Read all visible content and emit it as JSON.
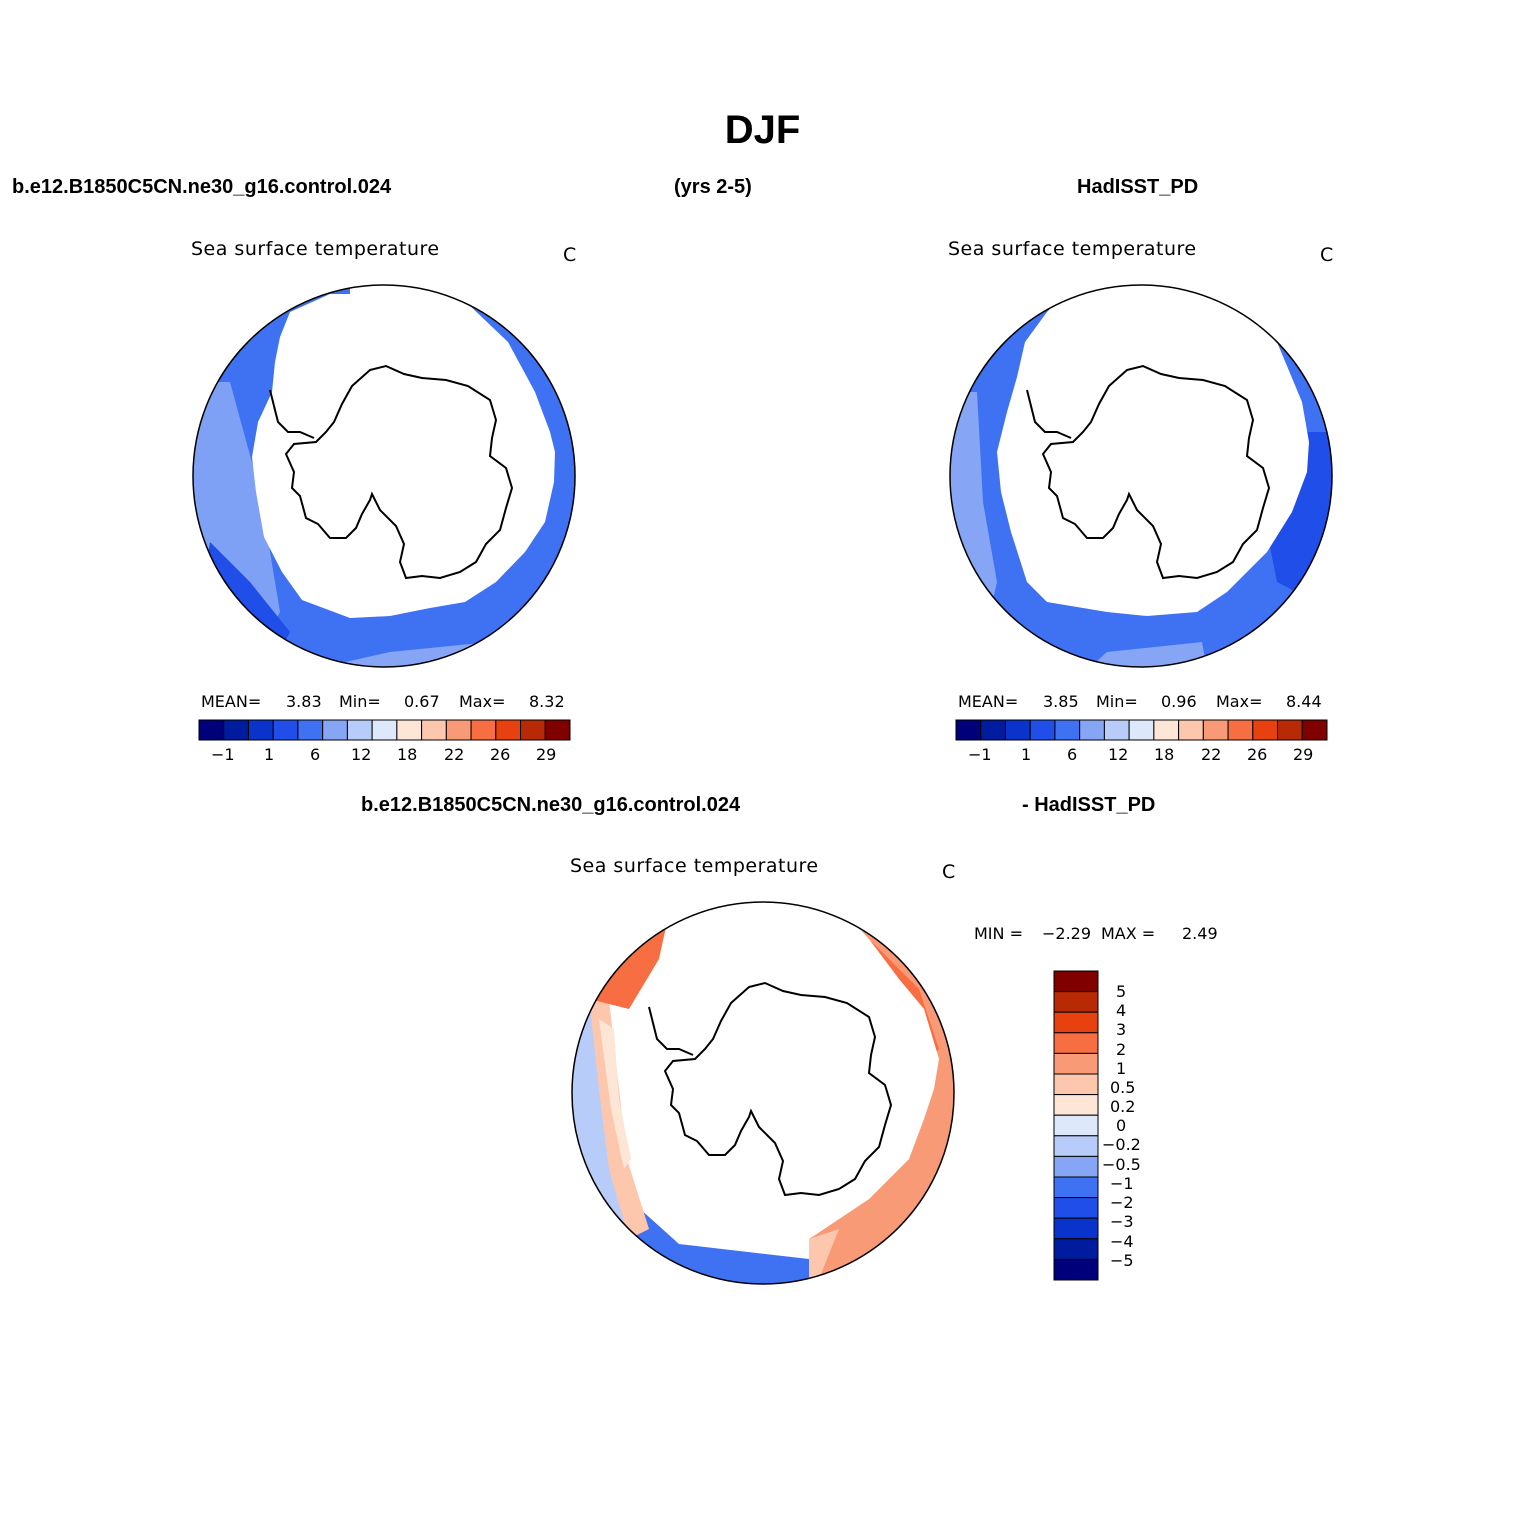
{
  "title": "DJF",
  "header": {
    "case_name": "b.e12.B1850C5CN.ne30_g16.control.024",
    "years": "(yrs 2-5)",
    "obs_name": "HadISST_PD",
    "diff_case": "b.e12.B1850C5CN.ne30_g16.control.024",
    "diff_obs": "- HadISST_PD"
  },
  "colors": {
    "palette": [
      "#00007a",
      "#001c9e",
      "#0a33cc",
      "#1f4ee8",
      "#3f72f2",
      "#86a6f5",
      "#b8ccf9",
      "#dde8fb",
      "#fde6d6",
      "#fcc7ac",
      "#f89a75",
      "#f66e42",
      "#e6410f",
      "#b82a05",
      "#800000"
    ]
  },
  "panels": [
    {
      "id": "model",
      "variable": "Sea surface temperature",
      "units": "C",
      "stats": {
        "mean_label": "MEAN=",
        "mean": "3.83",
        "min_label": "Min=",
        "min": "0.67",
        "max_label": "Max=",
        "max": "8.32"
      },
      "colorbar_ticks": [
        "−1",
        "1",
        "6",
        "12",
        "18",
        "22",
        "26",
        "29"
      ]
    },
    {
      "id": "obs",
      "variable": "Sea surface temperature",
      "units": "C",
      "stats": {
        "mean_label": "MEAN=",
        "mean": "3.85",
        "min_label": "Min=",
        "min": "0.96",
        "max_label": "Max=",
        "max": "8.44"
      },
      "colorbar_ticks": [
        "−1",
        "1",
        "6",
        "12",
        "18",
        "22",
        "26",
        "29"
      ]
    },
    {
      "id": "diff",
      "variable": "Sea surface temperature",
      "units": "C",
      "stats": {
        "min_label": "MIN =",
        "min": "−2.29",
        "max_label": "MAX =",
        "max": "2.49"
      },
      "colorbar_ticks": [
        "5",
        "4",
        "3",
        "2",
        "1",
        "0.5",
        "0.2",
        "0",
        "−0.2",
        "−0.5",
        "−1",
        "−2",
        "−3",
        "−4",
        "−5"
      ]
    }
  ]
}
